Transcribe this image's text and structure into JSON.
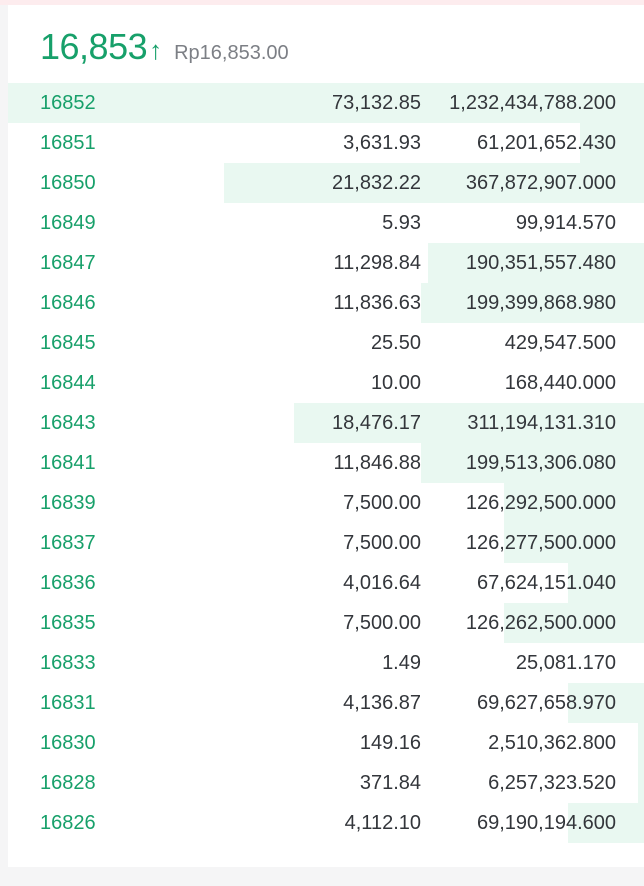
{
  "header": {
    "last_price": "16,853",
    "direction_icon": "arrow-up-icon",
    "arrow": "↑",
    "fiat_price": "Rp16,853.00"
  },
  "colors": {
    "bid": "#17a06a",
    "depth_bar": "#e9f8f1",
    "text": "#33363b"
  },
  "rows": [
    {
      "price": "16852",
      "amount": "73,132.85",
      "total": "1,232,434,788.200",
      "depth": 1.0
    },
    {
      "price": "16851",
      "amount": "3,631.93",
      "total": "61,201,652.430",
      "depth": 0.1
    },
    {
      "price": "16850",
      "amount": "21,832.22",
      "total": "367,872,907.000",
      "depth": 0.66
    },
    {
      "price": "16849",
      "amount": "5.93",
      "total": "99,914.570",
      "depth": 0.0
    },
    {
      "price": "16847",
      "amount": "11,298.84",
      "total": "190,351,557.480",
      "depth": 0.34
    },
    {
      "price": "16846",
      "amount": "11,836.63",
      "total": "199,399,868.980",
      "depth": 0.35
    },
    {
      "price": "16845",
      "amount": "25.50",
      "total": "429,547.500",
      "depth": 0.0
    },
    {
      "price": "16844",
      "amount": "10.00",
      "total": "168,440.000",
      "depth": 0.0
    },
    {
      "price": "16843",
      "amount": "18,476.17",
      "total": "311,194,131.310",
      "depth": 0.55
    },
    {
      "price": "16841",
      "amount": "11,846.88",
      "total": "199,513,306.080",
      "depth": 0.35
    },
    {
      "price": "16839",
      "amount": "7,500.00",
      "total": "126,292,500.000",
      "depth": 0.22
    },
    {
      "price": "16837",
      "amount": "7,500.00",
      "total": "126,277,500.000",
      "depth": 0.22
    },
    {
      "price": "16836",
      "amount": "4,016.64",
      "total": "67,624,151.040",
      "depth": 0.12
    },
    {
      "price": "16835",
      "amount": "7,500.00",
      "total": "126,262,500.000",
      "depth": 0.22
    },
    {
      "price": "16833",
      "amount": "1.49",
      "total": "25,081.170",
      "depth": 0.0
    },
    {
      "price": "16831",
      "amount": "4,136.87",
      "total": "69,627,658.970",
      "depth": 0.12
    },
    {
      "price": "16830",
      "amount": "149.16",
      "total": "2,510,362.800",
      "depth": 0.01
    },
    {
      "price": "16828",
      "amount": "371.84",
      "total": "6,257,323.520",
      "depth": 0.01
    },
    {
      "price": "16826",
      "amount": "4,112.10",
      "total": "69,190,194.600",
      "depth": 0.12
    }
  ]
}
